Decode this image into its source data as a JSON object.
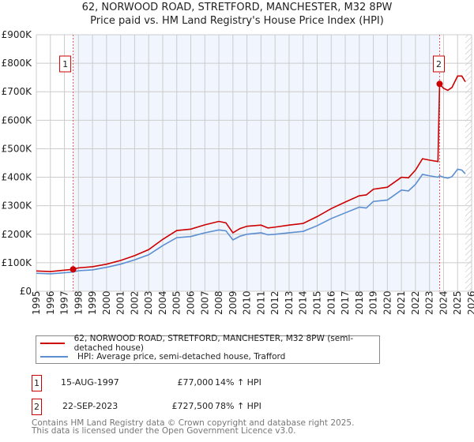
{
  "chart_data": {
    "type": "line",
    "title": "62, NORWOOD ROAD, STRETFORD, MANCHESTER, M32 8PW",
    "subtitle": "Price paid vs. HM Land Registry's House Price Index (HPI)",
    "xlim": [
      1995,
      2026
    ],
    "ylim": [
      0,
      900000
    ],
    "yticks": [
      {
        "v": 0,
        "label": "£0"
      },
      {
        "v": 100000,
        "label": "£100K"
      },
      {
        "v": 200000,
        "label": "£200K"
      },
      {
        "v": 300000,
        "label": "£300K"
      },
      {
        "v": 400000,
        "label": "£400K"
      },
      {
        "v": 500000,
        "label": "£500K"
      },
      {
        "v": 600000,
        "label": "£600K"
      },
      {
        "v": 700000,
        "label": "£700K"
      },
      {
        "v": 800000,
        "label": "£800K"
      },
      {
        "v": 900000,
        "label": "£900K"
      }
    ],
    "xticks": [
      "1995",
      "1996",
      "1997",
      "1998",
      "1999",
      "2000",
      "2001",
      "2002",
      "2003",
      "2004",
      "2005",
      "2006",
      "2007",
      "2008",
      "2009",
      "2010",
      "2011",
      "2012",
      "2013",
      "2014",
      "2015",
      "2016",
      "2017",
      "2018",
      "2019",
      "2020",
      "2021",
      "2022",
      "2023",
      "2024",
      "2025",
      "2026"
    ],
    "grid": true,
    "series": [
      {
        "name": "62, NORWOOD ROAD, STRETFORD, MANCHESTER, M32 8PW (semi-detached house)",
        "color": "#cc0000",
        "x": [
          1995,
          1996,
          1997,
          1997.62,
          1998,
          1999,
          2000,
          2001,
          2002,
          2003,
          2004,
          2005,
          2006,
          2007,
          2008,
          2008.5,
          2009,
          2009.5,
          2010,
          2011,
          2011.5,
          2012,
          2013,
          2014,
          2015,
          2016,
          2017,
          2018,
          2018.5,
          2019,
          2020,
          2021,
          2021.5,
          2022,
          2022.5,
          2023,
          2023.6,
          2023.72,
          2024,
          2024.3,
          2024.6,
          2025,
          2025.3,
          2025.55
        ],
        "y": [
          71000,
          69000,
          74000,
          77000,
          82000,
          86000,
          95000,
          108000,
          125000,
          146000,
          182000,
          213000,
          218000,
          233000,
          245000,
          240000,
          205000,
          220000,
          228000,
          232000,
          222000,
          225000,
          232000,
          238000,
          262000,
          290000,
          313000,
          335000,
          338000,
          358000,
          365000,
          400000,
          398000,
          425000,
          465000,
          460000,
          455000,
          727500,
          712000,
          705000,
          715000,
          755000,
          755000,
          735000
        ]
      },
      {
        "name": "HPI: Average price, semi-detached house, Trafford",
        "color": "#5b8fd1",
        "x": [
          1995,
          1996,
          1997,
          1997.62,
          1998,
          1999,
          2000,
          2001,
          2002,
          2003,
          2004,
          2005,
          2006,
          2007,
          2008,
          2008.5,
          2009,
          2009.5,
          2010,
          2011,
          2011.5,
          2012,
          2013,
          2014,
          2015,
          2016,
          2017,
          2018,
          2018.5,
          2019,
          2020,
          2021,
          2021.5,
          2022,
          2022.5,
          2023,
          2023.6,
          2023.72,
          2024,
          2024.3,
          2024.6,
          2025,
          2025.3,
          2025.55
        ],
        "y": [
          63000,
          61000,
          65000,
          67500,
          72000,
          75000,
          84000,
          95000,
          110000,
          128000,
          160000,
          188000,
          192000,
          205000,
          215000,
          212000,
          180000,
          193000,
          200000,
          205000,
          198000,
          200000,
          205000,
          210000,
          230000,
          255000,
          275000,
          295000,
          292000,
          315000,
          320000,
          355000,
          352000,
          375000,
          410000,
          405000,
          400000,
          405000,
          400000,
          397000,
          402000,
          428000,
          425000,
          412000
        ]
      }
    ],
    "sales": [
      {
        "num": "1",
        "x": 1997.62,
        "y": 77000,
        "date": "15-AUG-1997",
        "price": "£77,000",
        "hpi": "14% ↑ HPI"
      },
      {
        "num": "2",
        "x": 2023.72,
        "y": 727500,
        "date": "22-SEP-2023",
        "price": "£727,500",
        "hpi": "78% ↑ HPI"
      }
    ],
    "hatch_from": 2025.55
  },
  "footer": {
    "line1": "Contains HM Land Registry data © Crown copyright and database right 2025.",
    "line2": "This data is licensed under the Open Government Licence v3.0."
  }
}
